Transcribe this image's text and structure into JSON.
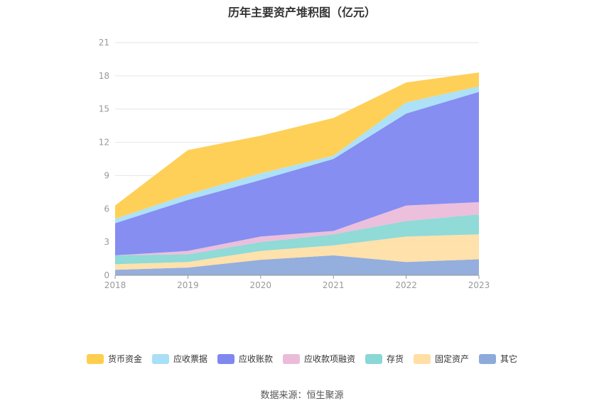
{
  "chart_data": {
    "type": "area",
    "title": "历年主要资产堆积图（亿元）",
    "source": "数据来源：恒生聚源",
    "categories": [
      "2018",
      "2019",
      "2020",
      "2021",
      "2022",
      "2023"
    ],
    "ylim": [
      0,
      21
    ],
    "yticks": [
      0,
      3,
      6,
      9,
      12,
      15,
      18,
      21
    ],
    "stacked": true,
    "legend_position": "bottom",
    "series": [
      {
        "name": "其它",
        "color": "#8EAADB",
        "values": [
          0.5,
          0.7,
          1.4,
          1.8,
          1.2,
          1.45
        ]
      },
      {
        "name": "固定资产",
        "color": "#FFDFA6",
        "values": [
          0.5,
          0.5,
          0.8,
          0.9,
          2.3,
          2.25
        ]
      },
      {
        "name": "存货",
        "color": "#8AD8D5",
        "values": [
          0.8,
          0.7,
          0.8,
          1.0,
          1.4,
          1.8
        ]
      },
      {
        "name": "应收款项融资",
        "color": "#EBBCDA",
        "values": [
          0.0,
          0.3,
          0.5,
          0.3,
          1.4,
          1.1
        ]
      },
      {
        "name": "应收账款",
        "color": "#8088F0",
        "values": [
          2.9,
          4.6,
          5.1,
          6.5,
          8.3,
          9.95
        ]
      },
      {
        "name": "应收票据",
        "color": "#A9DFF7",
        "values": [
          0.4,
          0.5,
          0.6,
          0.3,
          1.0,
          0.5
        ]
      },
      {
        "name": "货币资金",
        "color": "#FFCE4F",
        "values": [
          1.2,
          4.0,
          3.4,
          3.4,
          1.8,
          1.25
        ]
      }
    ]
  }
}
